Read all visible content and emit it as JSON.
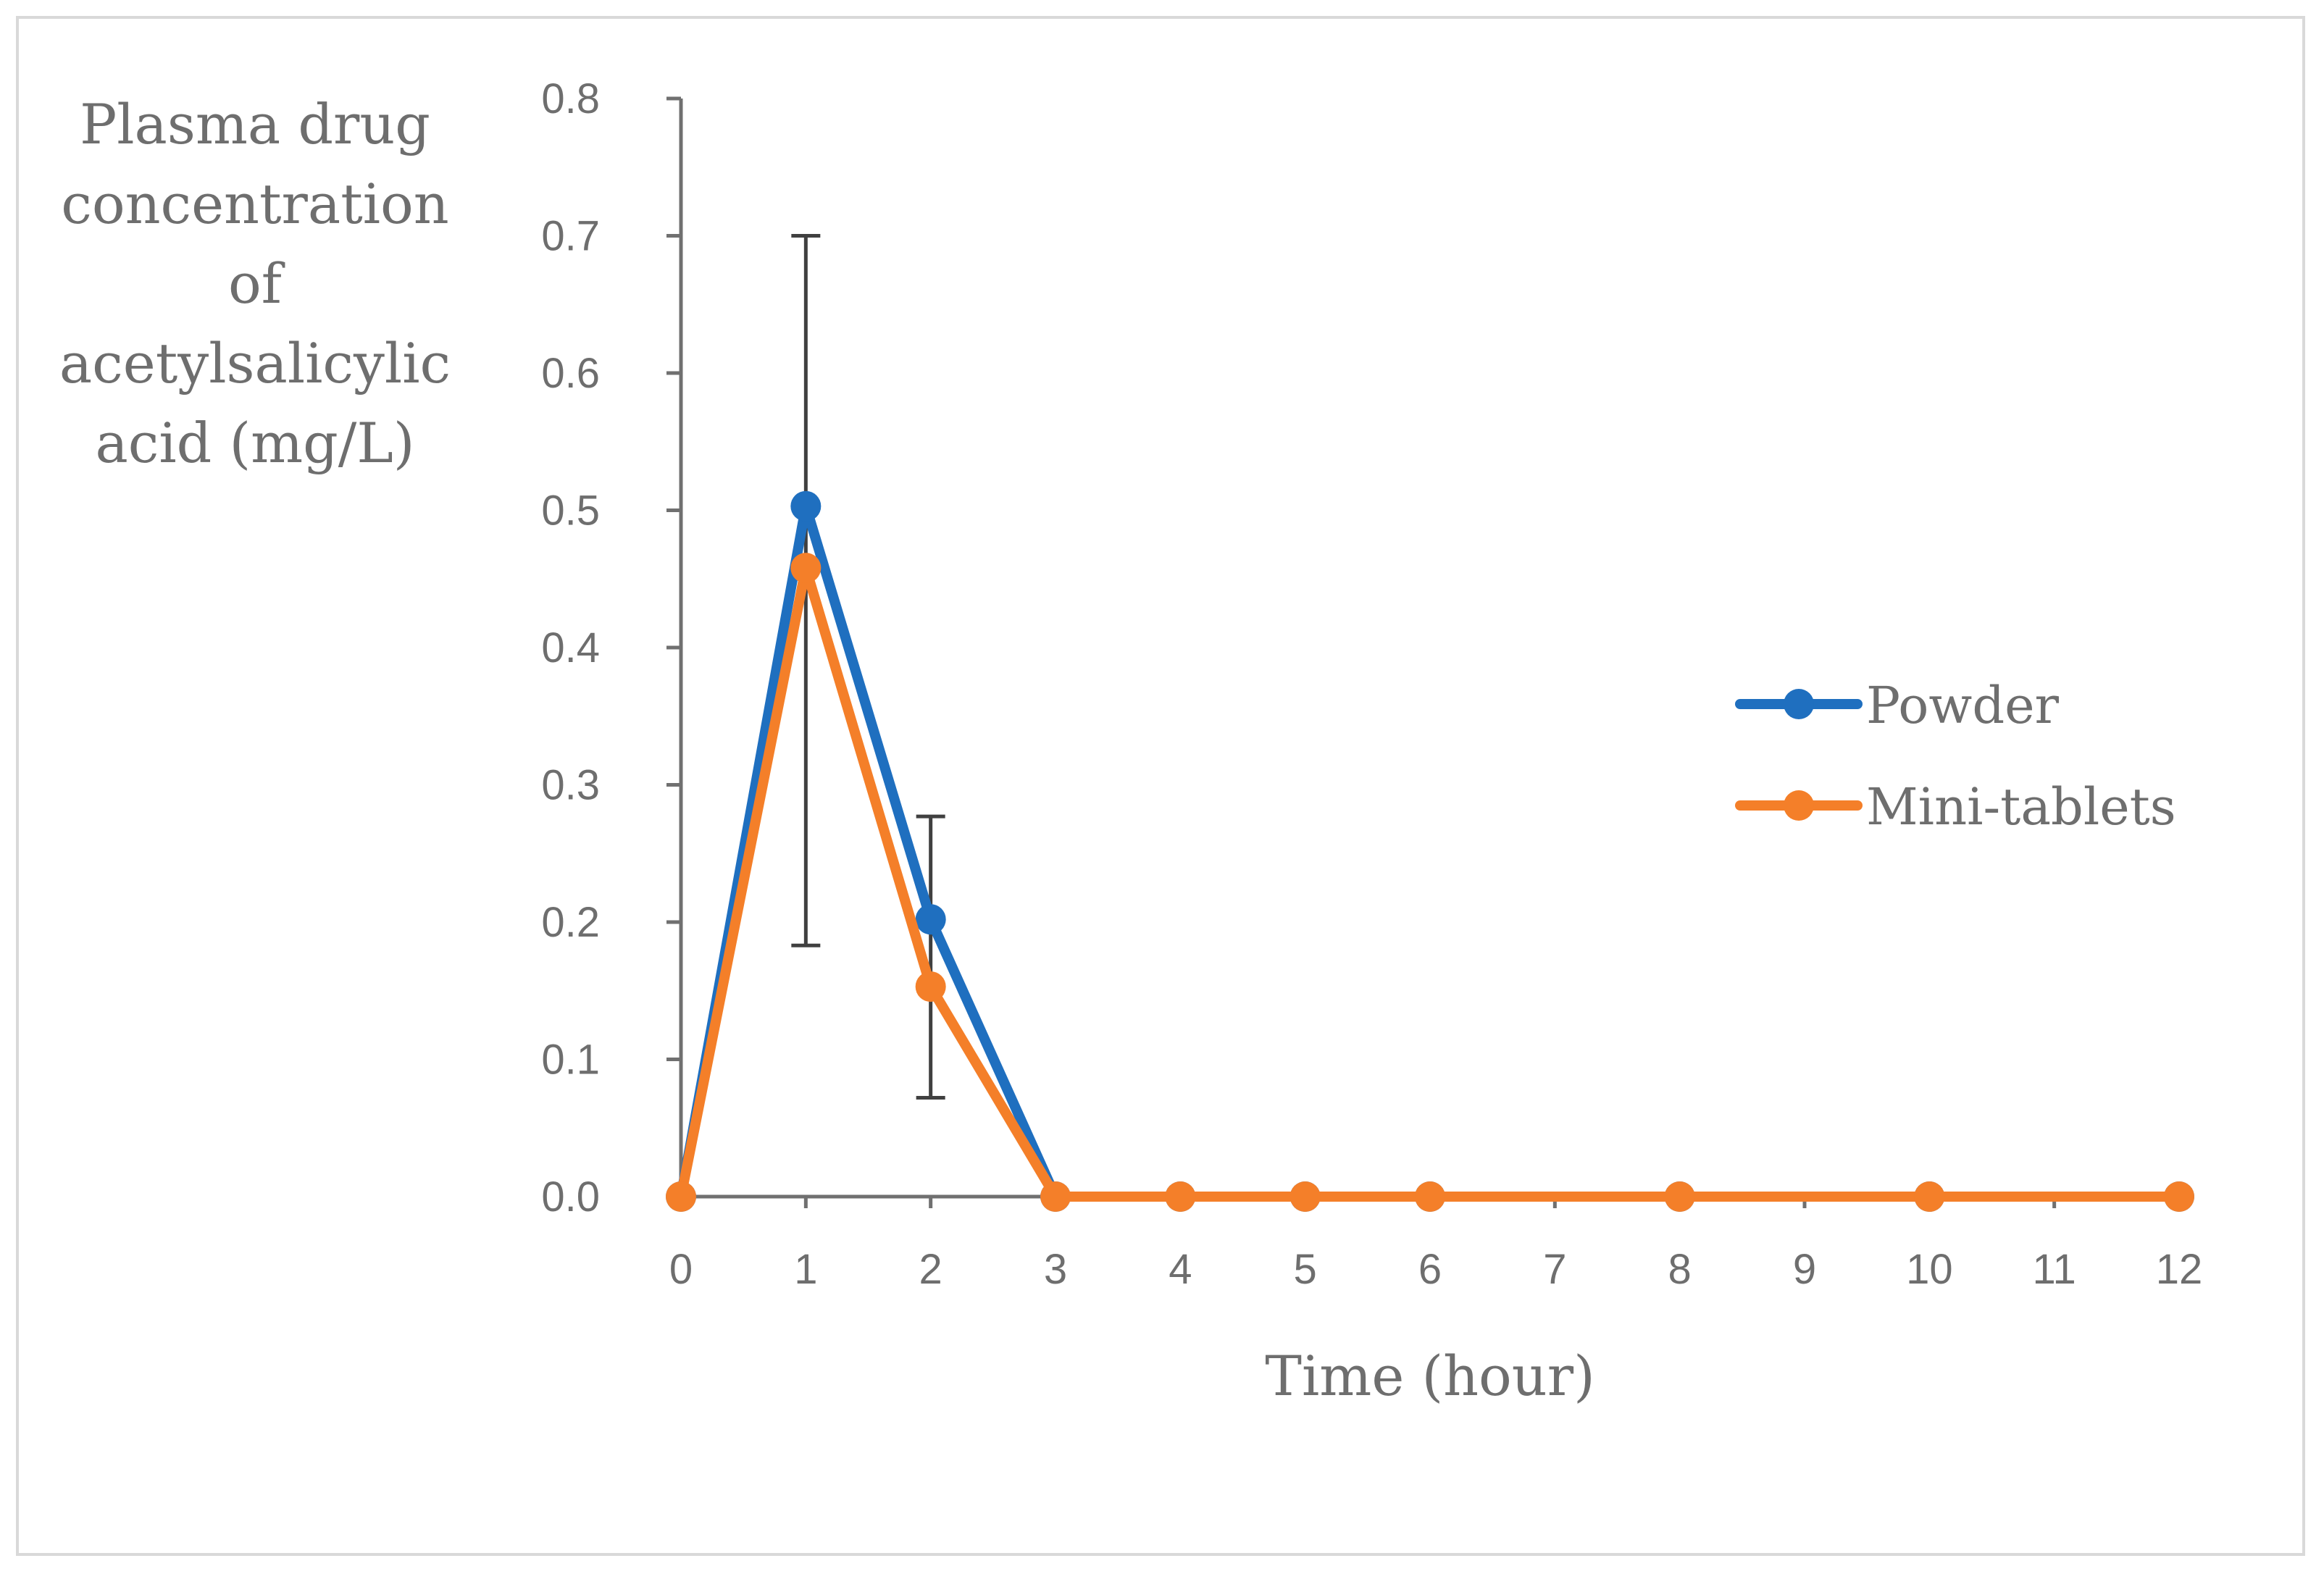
{
  "chart_data": {
    "type": "line",
    "title": "",
    "ylabel_lines": [
      "Plasma drug",
      "concentration",
      "of",
      "acetylsalicylic",
      "acid (mg/L)"
    ],
    "ylabel": "Plasma drug concentration of acetylsalicylic acid (mg/L)",
    "xlabel": "Time (hour)",
    "x_ticks": [
      "0",
      "1",
      "2",
      "3",
      "4",
      "5",
      "6",
      "7",
      "8",
      "9",
      "10",
      "11",
      "12"
    ],
    "y_ticks": [
      "0.0",
      "0.1",
      "0.2",
      "0.3",
      "0.4",
      "0.5",
      "0.6",
      "0.7",
      "0.8"
    ],
    "xlim": [
      0,
      12
    ],
    "ylim": [
      0,
      0.8
    ],
    "grid": false,
    "legend_position": "right",
    "series": [
      {
        "name": "Powder",
        "color": "#1f6fbf",
        "x": [
          0,
          1,
          2,
          3,
          4,
          5,
          6,
          8,
          10,
          12
        ],
        "values": [
          0,
          0.503,
          0.202,
          0,
          0,
          0,
          0,
          0,
          0,
          0
        ],
        "error_bars": [
          {
            "x": 1,
            "low": 0.183,
            "high": 0.7
          },
          {
            "x": 2,
            "low": 0.072,
            "high": 0.277
          }
        ]
      },
      {
        "name": "Mini-tablets",
        "color": "#f47f29",
        "x": [
          0,
          1,
          2,
          3,
          4,
          5,
          6,
          8,
          10,
          12
        ],
        "values": [
          0,
          0.458,
          0.153,
          0,
          0,
          0,
          0,
          0,
          0,
          0
        ]
      }
    ],
    "axis_color": "#707070",
    "error_bar_color": "#404040"
  }
}
